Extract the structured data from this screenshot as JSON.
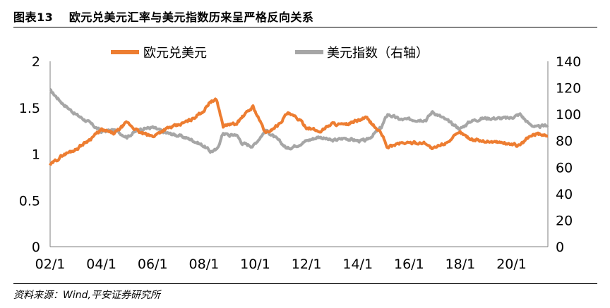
{
  "header": {
    "title": "图表13　 欧元兑美元汇率与美元指数历来呈严格反向关系"
  },
  "footer": {
    "source": "资料来源：Wind,平安证券研究所"
  },
  "colors": {
    "eurusd": "#ED7D31",
    "dxy": "#A6A6A6",
    "axis": "#7F7F7F"
  },
  "chart_data": {
    "type": "line",
    "x_tick_labels": [
      "02/1",
      "04/1",
      "06/1",
      "08/1",
      "10/1",
      "12/1",
      "14/1",
      "16/1",
      "18/1",
      "20/1"
    ],
    "x_range": [
      "2002-01",
      "2021-06"
    ],
    "y_left": {
      "ticks": [
        "0",
        "0.5",
        "1",
        "1.5",
        "2"
      ],
      "range": [
        0,
        2
      ]
    },
    "y_right": {
      "ticks": [
        "0",
        "20",
        "40",
        "60",
        "80",
        "100",
        "120",
        "140"
      ],
      "range": [
        0,
        140
      ]
    },
    "legend_position": "top",
    "series": [
      {
        "name": "欧元兑美元",
        "axis": "left",
        "x": [
          "2002-01",
          "2002-07",
          "2003-01",
          "2003-07",
          "2004-01",
          "2004-07",
          "2005-01",
          "2005-07",
          "2006-01",
          "2006-07",
          "2007-01",
          "2007-07",
          "2008-01",
          "2008-04",
          "2008-07",
          "2008-10",
          "2009-01",
          "2009-04",
          "2009-07",
          "2009-12",
          "2010-06",
          "2010-12",
          "2011-04",
          "2011-09",
          "2012-01",
          "2012-07",
          "2013-01",
          "2013-07",
          "2014-01",
          "2014-05",
          "2014-12",
          "2015-03",
          "2015-09",
          "2016-03",
          "2016-09",
          "2016-12",
          "2017-06",
          "2018-01",
          "2018-06",
          "2018-12",
          "2019-06",
          "2019-12",
          "2020-05",
          "2020-09",
          "2021-01",
          "2021-06"
        ],
        "y": [
          0.88,
          0.99,
          1.05,
          1.15,
          1.26,
          1.22,
          1.34,
          1.23,
          1.19,
          1.27,
          1.31,
          1.37,
          1.47,
          1.57,
          1.58,
          1.3,
          1.32,
          1.32,
          1.4,
          1.51,
          1.22,
          1.32,
          1.44,
          1.38,
          1.29,
          1.24,
          1.33,
          1.31,
          1.36,
          1.39,
          1.22,
          1.07,
          1.12,
          1.12,
          1.12,
          1.05,
          1.12,
          1.23,
          1.16,
          1.14,
          1.13,
          1.11,
          1.09,
          1.18,
          1.22,
          1.2
        ]
      },
      {
        "name": "美元指数（右轴）",
        "axis": "right",
        "x": [
          "2002-01",
          "2002-07",
          "2003-01",
          "2003-07",
          "2004-01",
          "2004-07",
          "2005-01",
          "2005-07",
          "2006-01",
          "2006-07",
          "2007-01",
          "2007-07",
          "2008-01",
          "2008-04",
          "2008-07",
          "2008-10",
          "2009-01",
          "2009-04",
          "2009-07",
          "2009-12",
          "2010-06",
          "2010-12",
          "2011-04",
          "2011-09",
          "2012-01",
          "2012-07",
          "2013-01",
          "2013-07",
          "2014-01",
          "2014-05",
          "2014-12",
          "2015-03",
          "2015-09",
          "2016-03",
          "2016-09",
          "2016-12",
          "2017-06",
          "2018-01",
          "2018-06",
          "2018-12",
          "2019-06",
          "2019-12",
          "2020-05",
          "2020-09",
          "2021-01",
          "2021-06"
        ],
        "y": [
          118,
          108,
          100,
          94,
          87,
          88,
          83,
          89,
          90,
          86,
          84,
          81,
          76,
          72,
          73,
          86,
          84,
          85,
          78,
          76,
          88,
          80,
          74,
          77,
          80,
          83,
          80,
          82,
          80,
          80,
          90,
          100,
          96,
          96,
          96,
          102,
          96,
          89,
          95,
          97,
          97,
          97,
          100,
          93,
          90,
          92
        ]
      }
    ]
  }
}
